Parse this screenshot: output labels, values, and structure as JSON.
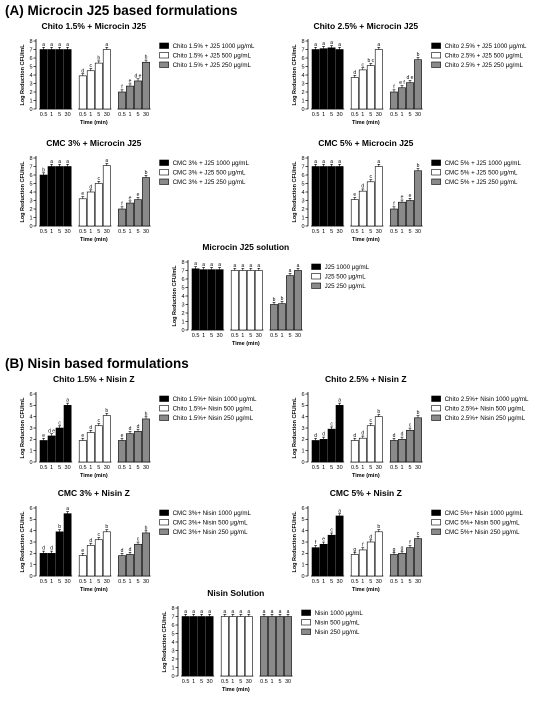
{
  "sections": {
    "a": "(A) Microcin J25 based formulations",
    "b": "(B) Nisin based formulations"
  },
  "colors": {
    "high": "#000000",
    "mid": "#ffffff",
    "low": "#8a8a8a",
    "stroke": "#000000"
  },
  "chart_data": [
    {
      "type": "bar",
      "title": "Chito 1.5% + Microcin J25",
      "xlabel": "Time  (min)",
      "ylabel": "Log Reduction CFU/mL",
      "ylim": [
        0,
        8
      ],
      "yticks": [
        0,
        1,
        2,
        3,
        4,
        5,
        6,
        7,
        8
      ],
      "categories": [
        "0.5",
        "1",
        "5",
        "30"
      ],
      "series": [
        {
          "name": "Chito 1.5% + J25 1000 μg/mL",
          "values": [
            7.0,
            7.0,
            7.0,
            7.0
          ],
          "labels": [
            "a",
            "a",
            "a",
            "a"
          ]
        },
        {
          "name": "Chito 1.5% + J25 500 μg/mL",
          "values": [
            3.9,
            4.5,
            5.4,
            7.0
          ],
          "labels": [
            "d",
            "c",
            "b",
            "a"
          ]
        },
        {
          "name": "Chito 1.5% + J25 250 μg/mL",
          "values": [
            2.0,
            2.7,
            3.3,
            5.5
          ],
          "labels": [
            "f",
            "e",
            "d e",
            "b"
          ]
        }
      ]
    },
    {
      "type": "bar",
      "title": "Chito 2.5% + Microcin J25",
      "xlabel": "Time  (min)",
      "ylabel": "Log Reduction CFU/mL",
      "ylim": [
        0,
        8
      ],
      "yticks": [
        0,
        1,
        2,
        3,
        4,
        5,
        6,
        7,
        8
      ],
      "categories": [
        "0.5",
        "1",
        "5",
        "30"
      ],
      "series": [
        {
          "name": "Chito 2.5% + J25 1000 μg/mL",
          "values": [
            7.0,
            7.1,
            7.2,
            7.0
          ],
          "labels": [
            "a",
            "a",
            "a",
            "a"
          ]
        },
        {
          "name": "Chito 2.5% + J25 500 μg/mL",
          "values": [
            3.7,
            4.6,
            5.1,
            7.0
          ],
          "labels": [
            "d",
            "c",
            "b c",
            "a"
          ]
        },
        {
          "name": "Chito 2.5% + J25 250 μg/mL",
          "values": [
            2.0,
            2.5,
            3.1,
            5.8
          ],
          "labels": [
            "f",
            "e f",
            "d e",
            "b"
          ]
        }
      ]
    },
    {
      "type": "bar",
      "title": "CMC 3% + Microcin J25",
      "xlabel": "Time  (min)",
      "ylabel": "Log Reduction CFU/mL",
      "ylim": [
        0,
        8
      ],
      "yticks": [
        0,
        1,
        2,
        3,
        4,
        5,
        6,
        7,
        8
      ],
      "categories": [
        "0.5",
        "1",
        "5",
        "30"
      ],
      "series": [
        {
          "name": "CMC 3% + J25 1000 μg/mL",
          "values": [
            6.0,
            7.0,
            7.0,
            7.0
          ],
          "labels": [
            "b",
            "a",
            "a",
            "a"
          ]
        },
        {
          "name": "CMC 3% + J25 500 μg/mL",
          "values": [
            3.2,
            4.0,
            5.0,
            7.1
          ],
          "labels": [
            "e",
            "d",
            "c",
            "a"
          ]
        },
        {
          "name": "CMC 3% + J25 250 μg/mL",
          "values": [
            2.0,
            2.7,
            3.1,
            5.7
          ],
          "labels": [
            "f",
            "e",
            "e",
            "b"
          ]
        }
      ]
    },
    {
      "type": "bar",
      "title": "CMC 5% + Microcin J25",
      "xlabel": "Time  (min)",
      "ylabel": "Log Reduction CFU/mL",
      "ylim": [
        0,
        8
      ],
      "yticks": [
        0,
        1,
        2,
        3,
        4,
        5,
        6,
        7,
        8
      ],
      "categories": [
        "0.5",
        "1",
        "5",
        "30"
      ],
      "series": [
        {
          "name": "CMC 5% + J25 1000 μg/mL",
          "values": [
            7.0,
            7.0,
            7.0,
            7.0
          ],
          "labels": [
            "a",
            "a",
            "a",
            "a"
          ]
        },
        {
          "name": "CMC 5% + J25 500 μg/mL",
          "values": [
            3.1,
            4.1,
            5.2,
            7.0
          ],
          "labels": [
            "e",
            "d",
            "c",
            "a"
          ]
        },
        {
          "name": "CMC 5% + J25 250 μg/mL",
          "values": [
            2.0,
            2.8,
            3.0,
            6.5
          ],
          "labels": [
            "f",
            "e",
            "e",
            "b"
          ]
        }
      ]
    },
    {
      "type": "bar",
      "title": "Microcin J25 solution",
      "xlabel": "Time  (min)",
      "ylabel": "Log Reduction CFU/mL",
      "ylim": [
        0,
        8
      ],
      "yticks": [
        0,
        1,
        2,
        3,
        4,
        5,
        6,
        7,
        8
      ],
      "categories": [
        "0.5",
        "1",
        "5",
        "30"
      ],
      "series": [
        {
          "name": "J25 1000 μg/mL",
          "values": [
            7.2,
            7.1,
            7.1,
            7.1
          ],
          "labels": [
            "a",
            "a",
            "a",
            "a"
          ]
        },
        {
          "name": "J25 500 μg/mL",
          "values": [
            7.0,
            7.0,
            7.0,
            7.0
          ],
          "labels": [
            "a",
            "a",
            "a",
            "a"
          ]
        },
        {
          "name": "J25 250 μg/mL",
          "values": [
            3.0,
            3.1,
            6.4,
            7.0
          ],
          "labels": [
            "b",
            "b",
            "a",
            "a"
          ]
        }
      ]
    },
    {
      "type": "bar",
      "title": "Chito 1.5% + Nisin Z",
      "xlabel": "Time  (min)",
      "ylabel": "Log Reduction CFU/mL",
      "ylim": [
        0,
        6
      ],
      "yticks": [
        0,
        1,
        2,
        3,
        4,
        5,
        6
      ],
      "categories": [
        "0.5",
        "1",
        "5",
        "30"
      ],
      "series": [
        {
          "name": "Chito 1.5%+ Nisin 1000 μg/mL",
          "values": [
            1.9,
            2.3,
            3.0,
            5.0
          ],
          "labels": [
            "e",
            "d e",
            "c",
            "a"
          ]
        },
        {
          "name": "Chito 1.5%+ Nisin 500 μg/mL",
          "values": [
            1.9,
            2.6,
            3.2,
            4.1
          ],
          "labels": [
            "e",
            "d",
            "c",
            "b"
          ]
        },
        {
          "name": "Chito 1.5%+ Nisin 250 μg/mL",
          "values": [
            1.9,
            2.5,
            2.7,
            3.8
          ],
          "labels": [
            "e",
            "d",
            "d",
            "b"
          ]
        }
      ]
    },
    {
      "type": "bar",
      "title": "Chito 2.5% + Nisin Z",
      "xlabel": "Time  (min)",
      "ylabel": "Log Reduction CFU/mL",
      "ylim": [
        0,
        6
      ],
      "yticks": [
        0,
        1,
        2,
        3,
        4,
        5,
        6
      ],
      "categories": [
        "0.5",
        "1",
        "5",
        "30"
      ],
      "series": [
        {
          "name": "Chito 2.5%+ Nisin 1000 μg/mL",
          "values": [
            1.9,
            2.0,
            2.9,
            5.0
          ],
          "labels": [
            "d",
            "d",
            "c",
            "a"
          ]
        },
        {
          "name": "Chito 2.5%+ Nisin 500 μg/mL",
          "values": [
            1.9,
            2.1,
            3.2,
            4.0
          ],
          "labels": [
            "d",
            "d",
            "c",
            "b"
          ]
        },
        {
          "name": "Chito 2.5%+ Nisin 250 μg/mL",
          "values": [
            1.9,
            2.0,
            2.8,
            3.9
          ],
          "labels": [
            "d",
            "d",
            "c",
            "b"
          ]
        }
      ]
    },
    {
      "type": "bar",
      "title": "CMC 3% + Nisin Z",
      "xlabel": "Time  (min)",
      "ylabel": "Log Reduction CFU/mL",
      "ylim": [
        0,
        6
      ],
      "yticks": [
        0,
        1,
        2,
        3,
        4,
        5,
        6
      ],
      "categories": [
        "0.5",
        "1",
        "5",
        "30"
      ],
      "series": [
        {
          "name": "CMC 3%+ Nisin 1000 μg/mL",
          "values": [
            2.0,
            2.0,
            3.9,
            5.5
          ],
          "labels": [
            "d",
            "d",
            "b",
            "a"
          ]
        },
        {
          "name": "CMC 3%+ Nisin 500 μg/mL",
          "values": [
            1.8,
            2.7,
            3.2,
            3.9
          ],
          "labels": [
            "e",
            "d",
            "c",
            "b"
          ]
        },
        {
          "name": "CMC 3%+ Nisin 250 μg/mL",
          "values": [
            1.8,
            1.9,
            2.8,
            3.8
          ],
          "labels": [
            "d",
            "d",
            "c",
            "b"
          ]
        }
      ]
    },
    {
      "type": "bar",
      "title": "CMC 5% + Nisin Z",
      "xlabel": "Time  (min)",
      "ylabel": "Log Reduction CFU/mL",
      "ylim": [
        0,
        6
      ],
      "yticks": [
        0,
        1,
        2,
        3,
        4,
        5,
        6
      ],
      "categories": [
        "0.5",
        "1",
        "5",
        "30"
      ],
      "series": [
        {
          "name": "CMC 5%+ Nisin 1000 μg/mL",
          "values": [
            2.5,
            2.8,
            3.6,
            5.3
          ],
          "labels": [
            "f",
            "e",
            "c",
            "a"
          ]
        },
        {
          "name": "CMC 5%+ Nisin 500 μg/mL",
          "values": [
            1.9,
            2.3,
            3.0,
            3.9
          ],
          "labels": [
            "g",
            "f",
            "d",
            "b"
          ]
        },
        {
          "name": "CMC 5%+ Nisin 250 μg/mL",
          "values": [
            1.9,
            2.0,
            2.5,
            3.3
          ],
          "labels": [
            "g",
            "g",
            "f",
            "c"
          ]
        }
      ]
    },
    {
      "type": "bar",
      "title": "Nisin Solution",
      "xlabel": "Time  (min)",
      "ylabel": "Log Reduction CFU/mL",
      "ylim": [
        0,
        8
      ],
      "yticks": [
        0,
        1,
        2,
        3,
        4,
        5,
        6,
        7,
        8
      ],
      "categories": [
        "0.5",
        "1",
        "5",
        "30"
      ],
      "series": [
        {
          "name": "Nisin 1000 μg/mL",
          "values": [
            7.0,
            7.0,
            7.0,
            7.0
          ],
          "labels": [
            "a",
            "a",
            "a",
            "a"
          ]
        },
        {
          "name": "Nisin 500 μg/mL",
          "values": [
            7.0,
            7.0,
            7.0,
            7.0
          ],
          "labels": [
            "a",
            "a",
            "a",
            "a"
          ]
        },
        {
          "name": "Nisin 250 μg/mL",
          "values": [
            7.0,
            7.0,
            7.0,
            7.0
          ],
          "labels": [
            "a",
            "a",
            "a",
            "a"
          ]
        }
      ]
    }
  ]
}
